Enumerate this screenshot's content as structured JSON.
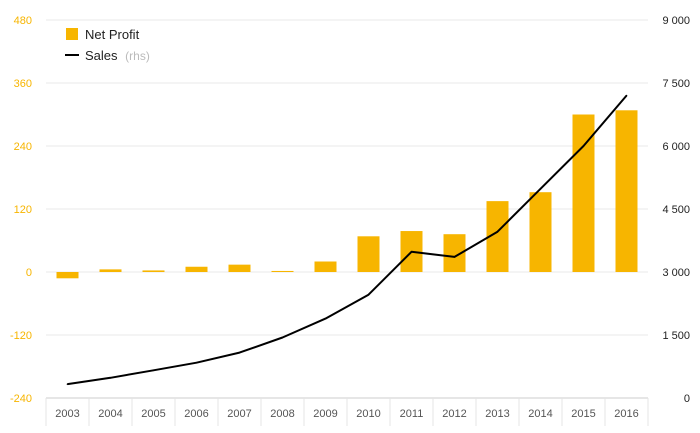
{
  "chart_data": {
    "type": "bar",
    "categories": [
      "2003",
      "2004",
      "2005",
      "2006",
      "2007",
      "2008",
      "2009",
      "2010",
      "2011",
      "2012",
      "2013",
      "2014",
      "2015",
      "2016"
    ],
    "series": [
      {
        "name": "Net Profit",
        "type": "bar",
        "axis": "left",
        "color": "#F7B500",
        "values": [
          -12,
          5,
          3,
          10,
          14,
          2,
          20,
          68,
          78,
          72,
          135,
          152,
          300,
          308
        ]
      },
      {
        "name": "Sales",
        "type": "line",
        "axis": "right",
        "color": "#000000",
        "values": [
          330,
          480,
          660,
          840,
          1080,
          1440,
          1890,
          2460,
          3480,
          3360,
          3960,
          4980,
          6000,
          7200
        ]
      }
    ],
    "legend": {
      "items": [
        {
          "label": "Net Profit",
          "sub": ""
        },
        {
          "label": "Sales",
          "sub": "(rhs)"
        }
      ],
      "position": "top-left"
    },
    "yaxis_left": {
      "ticks": [
        "480",
        "360",
        "240",
        "120",
        "0",
        "-120",
        "-240"
      ],
      "ylim": [
        -240,
        480
      ],
      "color": "#F7B500"
    },
    "yaxis_right": {
      "ticks": [
        "9 000",
        "7 500",
        "6 000",
        "4 500",
        "3 000",
        "1 500",
        "0"
      ],
      "ylim": [
        0,
        9000
      ]
    },
    "grid": true,
    "title": "",
    "xlabel": "",
    "ylabel": ""
  }
}
